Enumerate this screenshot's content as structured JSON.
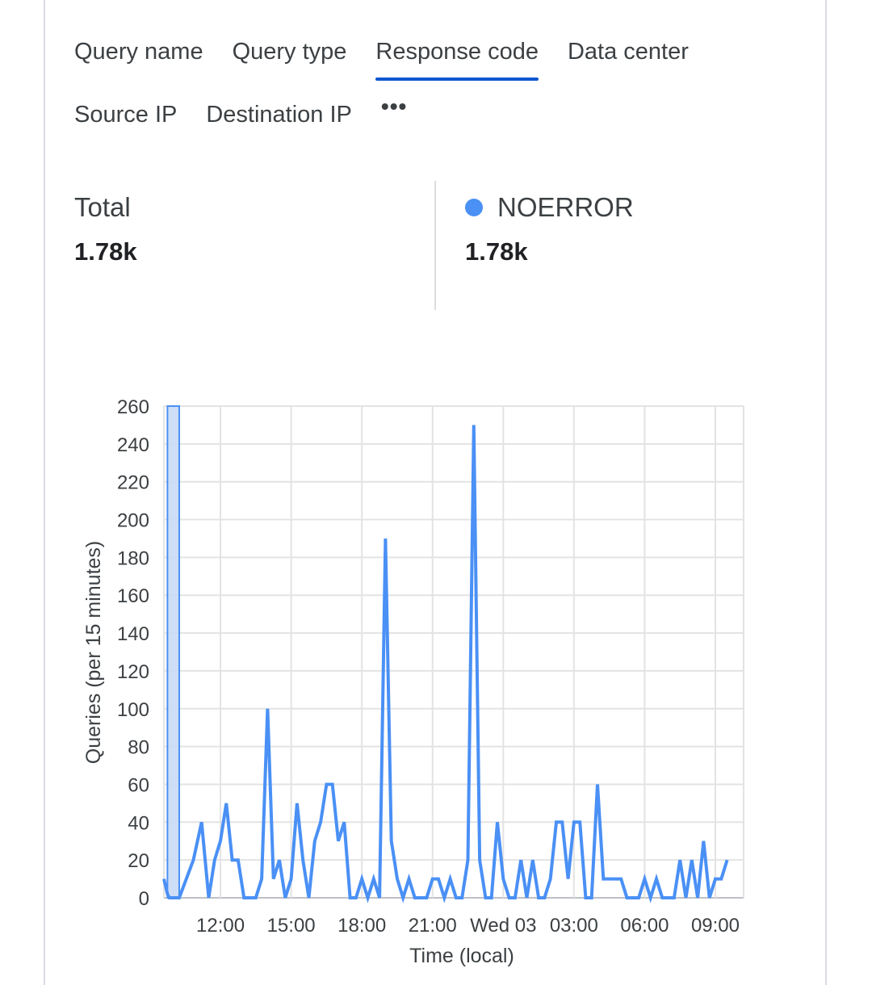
{
  "tabs": [
    {
      "label": "Query name",
      "active": false
    },
    {
      "label": "Query type",
      "active": false
    },
    {
      "label": "Response code",
      "active": true
    },
    {
      "label": "Data center",
      "active": false
    },
    {
      "label": "Source IP",
      "active": false
    },
    {
      "label": "Destination IP",
      "active": false
    },
    {
      "label": "•••",
      "active": false
    }
  ],
  "stats": {
    "total_label": "Total",
    "total_value": "1.78k",
    "series_label": "NOERROR",
    "series_value": "1.78k"
  },
  "colors": {
    "series": "#4a90f5",
    "accent": "#0b57d0",
    "selection_fill": "#c9daf5"
  },
  "chart_data": {
    "type": "line",
    "xlabel": "Time (local)",
    "ylabel": "Queries (per 15 minutes)",
    "yticks": [
      0,
      20,
      40,
      60,
      80,
      100,
      120,
      140,
      160,
      180,
      200,
      220,
      240,
      260
    ],
    "ylim": [
      0,
      260
    ],
    "xlim_hours": [
      9.6,
      34.2
    ],
    "xticks": [
      {
        "label": "12:00",
        "hour": 12
      },
      {
        "label": "15:00",
        "hour": 15
      },
      {
        "label": "18:00",
        "hour": 18
      },
      {
        "label": "21:00",
        "hour": 21
      },
      {
        "label": "Wed 03",
        "hour": 24
      },
      {
        "label": "03:00",
        "hour": 27
      },
      {
        "label": "06:00",
        "hour": 30
      },
      {
        "label": "09:00",
        "hour": 33
      }
    ],
    "grid": true,
    "selected_range_hours": [
      9.75,
      10.25
    ],
    "series": [
      {
        "name": "NOERROR",
        "points": [
          [
            9.6,
            10
          ],
          [
            9.75,
            2
          ],
          [
            9.83,
            0
          ],
          [
            10.25,
            0
          ],
          [
            10.85,
            20
          ],
          [
            11.2,
            40
          ],
          [
            11.5,
            0
          ],
          [
            11.75,
            20
          ],
          [
            12.0,
            30
          ],
          [
            12.25,
            50
          ],
          [
            12.5,
            20
          ],
          [
            12.75,
            20
          ],
          [
            13.0,
            0
          ],
          [
            13.5,
            0
          ],
          [
            13.75,
            10
          ],
          [
            14.0,
            100
          ],
          [
            14.25,
            10
          ],
          [
            14.5,
            20
          ],
          [
            14.75,
            0
          ],
          [
            15.0,
            10
          ],
          [
            15.25,
            50
          ],
          [
            15.5,
            20
          ],
          [
            15.75,
            0
          ],
          [
            16.0,
            30
          ],
          [
            16.25,
            40
          ],
          [
            16.5,
            60
          ],
          [
            16.75,
            60
          ],
          [
            17.0,
            30
          ],
          [
            17.25,
            40
          ],
          [
            17.5,
            0
          ],
          [
            17.75,
            0
          ],
          [
            18.0,
            10
          ],
          [
            18.25,
            0
          ],
          [
            18.5,
            10
          ],
          [
            18.75,
            0
          ],
          [
            19.0,
            190
          ],
          [
            19.25,
            30
          ],
          [
            19.5,
            10
          ],
          [
            19.75,
            0
          ],
          [
            20.0,
            10
          ],
          [
            20.25,
            0
          ],
          [
            20.75,
            0
          ],
          [
            21.0,
            10
          ],
          [
            21.25,
            10
          ],
          [
            21.5,
            0
          ],
          [
            21.75,
            10
          ],
          [
            22.0,
            0
          ],
          [
            22.25,
            0
          ],
          [
            22.5,
            20
          ],
          [
            22.75,
            250
          ],
          [
            23.0,
            20
          ],
          [
            23.25,
            0
          ],
          [
            23.5,
            0
          ],
          [
            23.75,
            40
          ],
          [
            24.0,
            10
          ],
          [
            24.25,
            0
          ],
          [
            24.5,
            0
          ],
          [
            24.75,
            20
          ],
          [
            25.0,
            0
          ],
          [
            25.25,
            20
          ],
          [
            25.5,
            0
          ],
          [
            25.75,
            0
          ],
          [
            26.0,
            10
          ],
          [
            26.25,
            40
          ],
          [
            26.5,
            40
          ],
          [
            26.75,
            10
          ],
          [
            27.0,
            40
          ],
          [
            27.25,
            40
          ],
          [
            27.5,
            0
          ],
          [
            27.75,
            0
          ],
          [
            28.0,
            60
          ],
          [
            28.25,
            10
          ],
          [
            28.5,
            10
          ],
          [
            28.75,
            10
          ],
          [
            29.0,
            10
          ],
          [
            29.25,
            0
          ],
          [
            29.75,
            0
          ],
          [
            30.0,
            10
          ],
          [
            30.25,
            0
          ],
          [
            30.5,
            10
          ],
          [
            30.75,
            0
          ],
          [
            31.0,
            0
          ],
          [
            31.25,
            0
          ],
          [
            31.5,
            20
          ],
          [
            31.75,
            0
          ],
          [
            32.0,
            20
          ],
          [
            32.25,
            0
          ],
          [
            32.5,
            30
          ],
          [
            32.75,
            0
          ],
          [
            33.0,
            10
          ],
          [
            33.25,
            10
          ],
          [
            33.5,
            20
          ]
        ]
      }
    ]
  }
}
